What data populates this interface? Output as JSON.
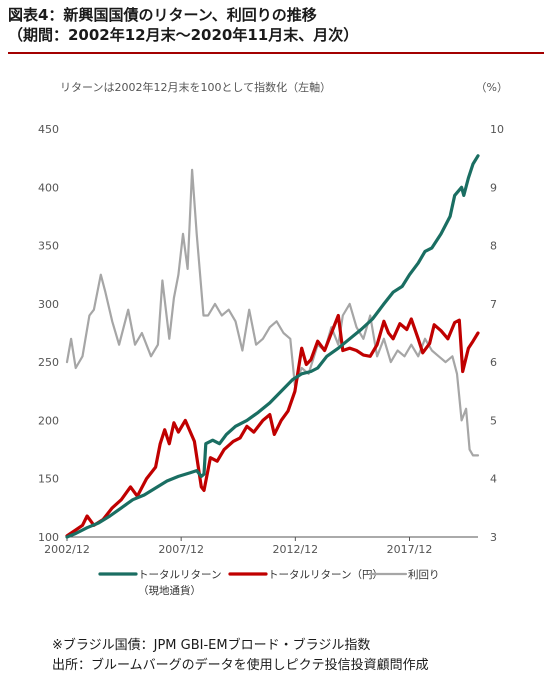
{
  "header": {
    "title": "図表4：新興国国債のリターン、利回りの推移",
    "subtitle": "（期間：2002年12月末～2020年11月末、月次）"
  },
  "chart_data": {
    "type": "line",
    "annotation": "リターンは2002年12月末を100として指数化（左軸）",
    "y2_unit": "（%）",
    "ylim": [
      100,
      450
    ],
    "yticks": [
      "100",
      "150",
      "200",
      "250",
      "300",
      "350",
      "400",
      "450"
    ],
    "y2lim": [
      3,
      10
    ],
    "y2ticks": [
      "3",
      "4",
      "5",
      "6",
      "7",
      "8",
      "9",
      "10"
    ],
    "xticks": [
      {
        "label": "2002/12",
        "t": 2002.92
      },
      {
        "label": "2007/12",
        "t": 2007.92
      },
      {
        "label": "2012/12",
        "t": 2012.92
      },
      {
        "label": "2017/12",
        "t": 2017.92
      }
    ],
    "xlim": [
      2002.92,
      2020.92
    ],
    "grid": false,
    "legend_position": "bottom",
    "series": [
      {
        "name": "トータルリターン（現地通貨）",
        "name_line1": "トータルリターン",
        "name_line2": "（現地通貨）",
        "axis": "left",
        "color": "#1a6e62",
        "points": [
          [
            2002.92,
            100
          ],
          [
            2003.3,
            103
          ],
          [
            2003.8,
            108
          ],
          [
            2004.3,
            112
          ],
          [
            2004.8,
            118
          ],
          [
            2005.3,
            125
          ],
          [
            2005.8,
            132
          ],
          [
            2006.3,
            136
          ],
          [
            2006.8,
            142
          ],
          [
            2007.3,
            148
          ],
          [
            2007.8,
            152
          ],
          [
            2008.3,
            155
          ],
          [
            2008.6,
            157
          ],
          [
            2008.8,
            152
          ],
          [
            2008.92,
            154
          ],
          [
            2009.0,
            180
          ],
          [
            2009.3,
            183
          ],
          [
            2009.6,
            180
          ],
          [
            2009.9,
            188
          ],
          [
            2010.3,
            195
          ],
          [
            2010.8,
            200
          ],
          [
            2011.3,
            207
          ],
          [
            2011.8,
            215
          ],
          [
            2012.3,
            225
          ],
          [
            2012.8,
            235
          ],
          [
            2013.2,
            240
          ],
          [
            2013.6,
            242
          ],
          [
            2013.9,
            245
          ],
          [
            2014.3,
            255
          ],
          [
            2014.8,
            262
          ],
          [
            2015.3,
            270
          ],
          [
            2015.8,
            278
          ],
          [
            2016.3,
            287
          ],
          [
            2016.8,
            300
          ],
          [
            2017.2,
            310
          ],
          [
            2017.6,
            315
          ],
          [
            2017.92,
            325
          ],
          [
            2018.3,
            335
          ],
          [
            2018.6,
            345
          ],
          [
            2018.9,
            348
          ],
          [
            2019.3,
            360
          ],
          [
            2019.7,
            375
          ],
          [
            2019.9,
            393
          ],
          [
            2020.2,
            400
          ],
          [
            2020.3,
            393
          ],
          [
            2020.5,
            408
          ],
          [
            2020.7,
            420
          ],
          [
            2020.92,
            427
          ]
        ]
      },
      {
        "name": "トータルリターン（円）",
        "axis": "left",
        "color": "#c00000",
        "points": [
          [
            2002.92,
            101
          ],
          [
            2003.3,
            106
          ],
          [
            2003.6,
            110
          ],
          [
            2003.8,
            118
          ],
          [
            2004.1,
            110
          ],
          [
            2004.5,
            115
          ],
          [
            2004.9,
            125
          ],
          [
            2005.3,
            132
          ],
          [
            2005.7,
            143
          ],
          [
            2006.0,
            135
          ],
          [
            2006.4,
            150
          ],
          [
            2006.8,
            160
          ],
          [
            2007.0,
            180
          ],
          [
            2007.2,
            192
          ],
          [
            2007.4,
            180
          ],
          [
            2007.6,
            198
          ],
          [
            2007.8,
            190
          ],
          [
            2008.1,
            200
          ],
          [
            2008.5,
            182
          ],
          [
            2008.8,
            143
          ],
          [
            2008.92,
            140
          ],
          [
            2009.2,
            168
          ],
          [
            2009.5,
            165
          ],
          [
            2009.8,
            175
          ],
          [
            2010.2,
            182
          ],
          [
            2010.5,
            185
          ],
          [
            2010.8,
            195
          ],
          [
            2011.1,
            190
          ],
          [
            2011.5,
            200
          ],
          [
            2011.8,
            205
          ],
          [
            2012.0,
            188
          ],
          [
            2012.3,
            200
          ],
          [
            2012.6,
            208
          ],
          [
            2012.9,
            225
          ],
          [
            2013.2,
            262
          ],
          [
            2013.4,
            248
          ],
          [
            2013.6,
            252
          ],
          [
            2013.9,
            268
          ],
          [
            2014.2,
            260
          ],
          [
            2014.5,
            275
          ],
          [
            2014.8,
            290
          ],
          [
            2015.0,
            260
          ],
          [
            2015.3,
            262
          ],
          [
            2015.6,
            260
          ],
          [
            2015.9,
            256
          ],
          [
            2016.2,
            255
          ],
          [
            2016.5,
            265
          ],
          [
            2016.8,
            285
          ],
          [
            2017.0,
            275
          ],
          [
            2017.2,
            270
          ],
          [
            2017.5,
            283
          ],
          [
            2017.8,
            278
          ],
          [
            2018.0,
            287
          ],
          [
            2018.3,
            270
          ],
          [
            2018.5,
            258
          ],
          [
            2018.8,
            266
          ],
          [
            2019.0,
            282
          ],
          [
            2019.3,
            277
          ],
          [
            2019.6,
            270
          ],
          [
            2019.9,
            284
          ],
          [
            2020.1,
            286
          ],
          [
            2020.25,
            242
          ],
          [
            2020.5,
            262
          ],
          [
            2020.7,
            268
          ],
          [
            2020.92,
            275
          ]
        ]
      },
      {
        "name": "利回り",
        "axis": "right",
        "color": "#a6a6a6",
        "points": [
          [
            2002.92,
            6.0
          ],
          [
            2003.1,
            6.4
          ],
          [
            2003.3,
            5.9
          ],
          [
            2003.6,
            6.1
          ],
          [
            2003.9,
            6.8
          ],
          [
            2004.1,
            6.9
          ],
          [
            2004.4,
            7.5
          ],
          [
            2004.6,
            7.2
          ],
          [
            2004.9,
            6.7
          ],
          [
            2005.2,
            6.3
          ],
          [
            2005.6,
            6.9
          ],
          [
            2005.9,
            6.3
          ],
          [
            2006.2,
            6.5
          ],
          [
            2006.6,
            6.1
          ],
          [
            2006.9,
            6.3
          ],
          [
            2007.1,
            7.4
          ],
          [
            2007.4,
            6.4
          ],
          [
            2007.6,
            7.1
          ],
          [
            2007.8,
            7.5
          ],
          [
            2008.0,
            8.2
          ],
          [
            2008.2,
            7.6
          ],
          [
            2008.4,
            9.3
          ],
          [
            2008.6,
            8.2
          ],
          [
            2008.9,
            6.8
          ],
          [
            2009.1,
            6.8
          ],
          [
            2009.4,
            7.0
          ],
          [
            2009.7,
            6.8
          ],
          [
            2010.0,
            6.9
          ],
          [
            2010.3,
            6.7
          ],
          [
            2010.6,
            6.2
          ],
          [
            2010.9,
            6.9
          ],
          [
            2011.2,
            6.3
          ],
          [
            2011.5,
            6.4
          ],
          [
            2011.8,
            6.6
          ],
          [
            2012.1,
            6.7
          ],
          [
            2012.4,
            6.5
          ],
          [
            2012.7,
            6.4
          ],
          [
            2012.9,
            5.6
          ],
          [
            2013.2,
            5.9
          ],
          [
            2013.5,
            5.8
          ],
          [
            2013.9,
            6.3
          ],
          [
            2014.2,
            6.2
          ],
          [
            2014.5,
            6.6
          ],
          [
            2014.8,
            6.3
          ],
          [
            2015.0,
            6.8
          ],
          [
            2015.3,
            7.0
          ],
          [
            2015.6,
            6.6
          ],
          [
            2015.9,
            6.4
          ],
          [
            2016.2,
            6.8
          ],
          [
            2016.5,
            6.1
          ],
          [
            2016.8,
            6.4
          ],
          [
            2017.1,
            6.0
          ],
          [
            2017.4,
            6.2
          ],
          [
            2017.7,
            6.1
          ],
          [
            2018.0,
            6.3
          ],
          [
            2018.3,
            6.1
          ],
          [
            2018.6,
            6.4
          ],
          [
            2018.9,
            6.2
          ],
          [
            2019.2,
            6.1
          ],
          [
            2019.5,
            6.0
          ],
          [
            2019.8,
            6.1
          ],
          [
            2020.0,
            5.8
          ],
          [
            2020.2,
            5.0
          ],
          [
            2020.4,
            5.2
          ],
          [
            2020.55,
            4.5
          ],
          [
            2020.7,
            4.4
          ],
          [
            2020.92,
            4.4
          ]
        ]
      }
    ]
  },
  "notes": {
    "line1": "※ブラジル国債：JPM GBI-EMブロード・ブラジル指数",
    "line2": "出所：ブルームバーグのデータを使用しピクテ投信投資顧問作成"
  }
}
